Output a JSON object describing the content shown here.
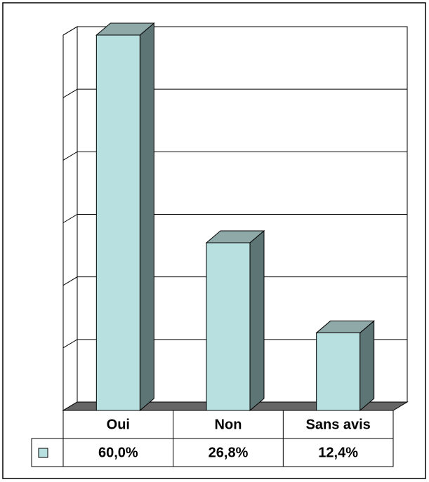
{
  "chart_data": {
    "type": "bar3d",
    "categories": [
      "Oui",
      "Non",
      "Sans avis"
    ],
    "series": [
      {
        "color": "#b8e0e0",
        "values": [
          60.0,
          26.8,
          12.4
        ],
        "value_labels": [
          "60,0%",
          "26,8%",
          "12,4%"
        ]
      }
    ],
    "ylim": [
      0,
      60
    ],
    "yticks": [
      0,
      10,
      20,
      30,
      40,
      50,
      60
    ],
    "grid": true
  }
}
